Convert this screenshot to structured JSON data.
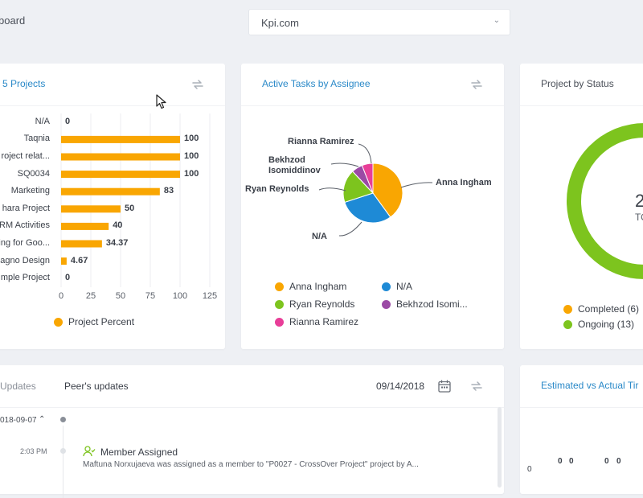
{
  "header": {
    "breadcrumb": "board",
    "project_select": "Kpi.com"
  },
  "colors": {
    "orange": "#f9a602",
    "blue": "#1e8ad6",
    "green": "#7dc41e",
    "purple": "#9b4aa5",
    "pink": "#e83e98",
    "accent": "#2a89c8"
  },
  "top_projects": {
    "title": "5 Projects",
    "legend": "Project Percent",
    "chart_data": {
      "type": "bar",
      "categories": [
        "N/A",
        "Taqnia",
        "roject relat...",
        "SQ0034",
        "Marketing",
        "hara Project",
        "RM Activities",
        "ing for Goo...",
        "agno Design",
        "mple Project"
      ],
      "values": [
        0,
        100,
        100,
        100,
        83,
        50,
        40,
        34.37,
        4.67,
        0
      ],
      "value_labels": [
        "0",
        "100",
        "100",
        "100",
        "83",
        "50",
        "40",
        "34.37",
        "4.67",
        "0"
      ],
      "xlim": [
        0,
        125
      ],
      "xticks": [
        "0",
        "25",
        "50",
        "75",
        "100",
        "125"
      ],
      "grid": true,
      "legend": "bottom"
    }
  },
  "active_tasks": {
    "title": "Active Tasks by Assignee",
    "chart_data": {
      "type": "pie",
      "labels": [
        "Anna Ingham",
        "N/A",
        "Ryan Reynolds",
        "Bekhzod Isomiddinov",
        "Rianna Ramirez"
      ],
      "values": [
        40,
        30,
        18,
        6,
        6
      ],
      "colors": [
        "#f9a602",
        "#1e8ad6",
        "#7dc41e",
        "#9b4aa5",
        "#e83e98"
      ],
      "legend": "bottom"
    },
    "callouts": {
      "anna": "Anna Ingham",
      "na": "N/A",
      "ryan": "Ryan Reynolds",
      "bekhzod_1": "Bekhzod",
      "bekhzod_2": "Isomiddinov",
      "rianna": "Rianna Ramirez"
    },
    "legend": [
      "Anna Ingham",
      "N/A",
      "Ryan Reynolds",
      "Bekhzod Isomi...",
      "Rianna Ramirez"
    ]
  },
  "project_status": {
    "title": "Project by Status",
    "center_num": "2",
    "center_sub": "TO",
    "chart_data": {
      "type": "pie",
      "labels": [
        "Completed",
        "Ongoing"
      ],
      "values": [
        6,
        13
      ],
      "colors": [
        "#f9a602",
        "#7dc41e"
      ]
    },
    "legend": [
      "Completed (6)",
      "Ongoing (13)"
    ]
  },
  "updates": {
    "tab_updates": "Updates",
    "tab_peers": "Peer's updates",
    "date": "09/14/2018",
    "group_date": "018-09-07",
    "time": "2:03 PM",
    "event_title": "Member Assigned",
    "event_desc": "Maftuna Norxujaeva was assigned as a member to \"P0027 - CrossOver Project\" project by A..."
  },
  "est_actual": {
    "title": "Estimated vs Actual Tir",
    "axis_zero": "0",
    "values": [
      "0",
      "0",
      "0",
      "0"
    ]
  }
}
